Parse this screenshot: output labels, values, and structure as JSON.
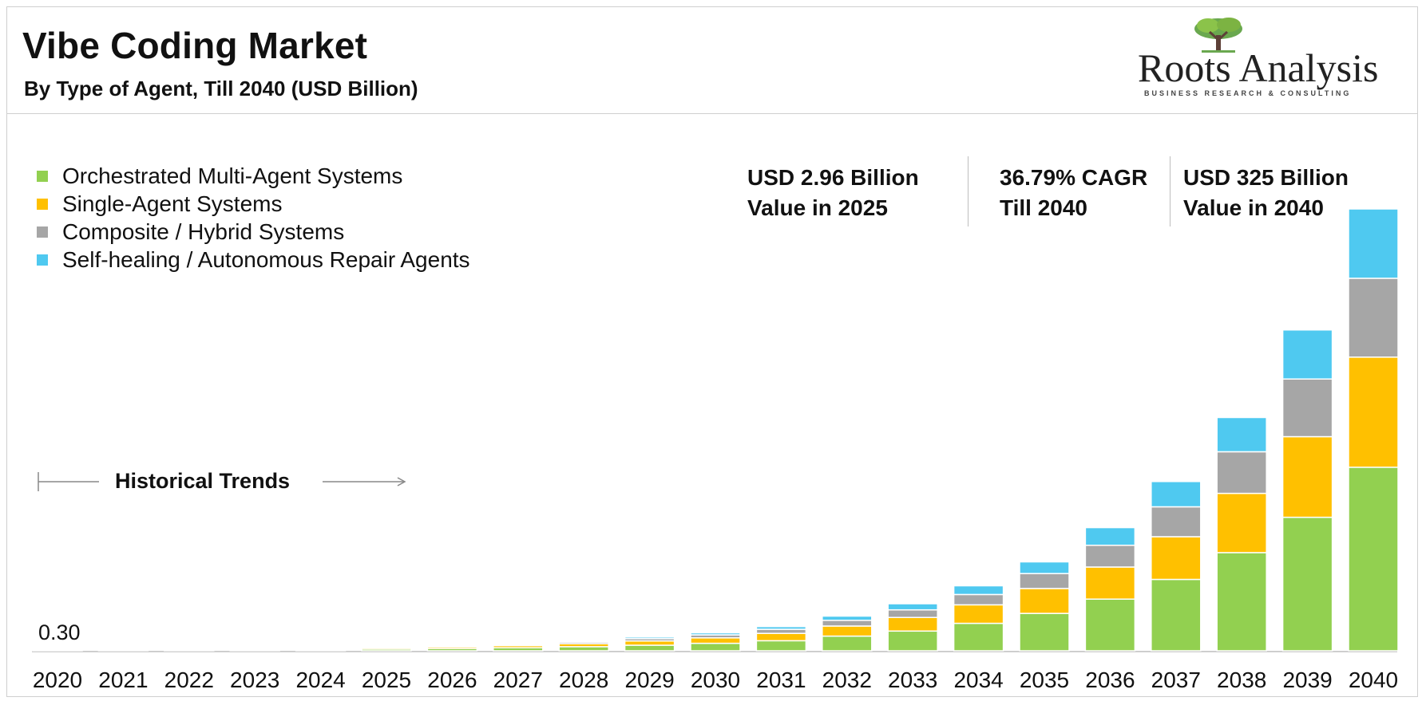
{
  "header": {
    "title": "Vibe Coding Market",
    "subtitle": "By Type of Agent, Till 2040 (USD Billion)"
  },
  "logo": {
    "name": "Roots Analysis",
    "tagline": "BUSINESS RESEARCH & CONSULTING"
  },
  "stats": [
    {
      "line1": "USD 2.96 Billion",
      "line2": "Value in 2025"
    },
    {
      "line1": "36.79% CAGR",
      "line2": "Till 2040"
    },
    {
      "line1": "USD 325 Billion",
      "line2": "Value in 2040"
    }
  ],
  "historical": {
    "label": "Historical Trends"
  },
  "first_value_label": "0.30",
  "colors": {
    "green": "#92d050",
    "yellow": "#ffc000",
    "gray": "#a6a6a6",
    "blue": "#4fc9f0"
  },
  "chart_data": {
    "type": "bar",
    "stacked": true,
    "title": "Vibe Coding Market",
    "subtitle": "By Type of Agent, Till 2040 (USD Billion)",
    "xlabel": "",
    "ylabel": "",
    "ylim": [
      0,
      325
    ],
    "categories": [
      "2020",
      "2021",
      "2022",
      "2023",
      "2024",
      "2025",
      "2026",
      "2027",
      "2028",
      "2029",
      "2030",
      "2031",
      "2032",
      "2033",
      "2034",
      "2035",
      "2036",
      "2037",
      "2038",
      "2039",
      "2040"
    ],
    "series": [
      {
        "name": "Orchestrated Multi-Agent Systems",
        "color": "#92d050",
        "values": [
          0.12,
          0.16,
          0.22,
          0.35,
          0.7,
          1.25,
          1.7,
          2.2,
          3.0,
          4.1,
          5.5,
          7.4,
          10.8,
          14.5,
          20.2,
          27.5,
          38.0,
          52.5,
          72.2,
          98.2,
          135.0
        ]
      },
      {
        "name": "Single-Agent Systems",
        "color": "#ffc000",
        "values": [
          0.09,
          0.12,
          0.16,
          0.25,
          0.5,
          0.95,
          1.2,
          1.6,
          2.2,
          3.1,
          4.0,
          5.4,
          7.4,
          10.0,
          13.6,
          18.3,
          23.6,
          31.4,
          43.6,
          59.3,
          81.0
        ]
      },
      {
        "name": "Composite / Hybrid Systems",
        "color": "#a6a6a6",
        "values": [
          0.05,
          0.07,
          0.1,
          0.15,
          0.3,
          0.5,
          0.6,
          0.9,
          1.2,
          1.7,
          2.2,
          3.0,
          4.2,
          5.6,
          7.6,
          11.0,
          16.0,
          22.0,
          30.6,
          42.4,
          58.0
        ]
      },
      {
        "name": "Self-healing / Autonomous Repair Agents",
        "color": "#4fc9f0",
        "values": [
          0.04,
          0.05,
          0.07,
          0.1,
          0.2,
          0.26,
          0.4,
          0.6,
          0.8,
          1.2,
          1.5,
          2.0,
          3.1,
          4.5,
          6.4,
          8.6,
          13.0,
          18.6,
          25.2,
          36.1,
          51.0
        ]
      }
    ],
    "annotations": [
      "0.30",
      "Historical Trends"
    ]
  }
}
